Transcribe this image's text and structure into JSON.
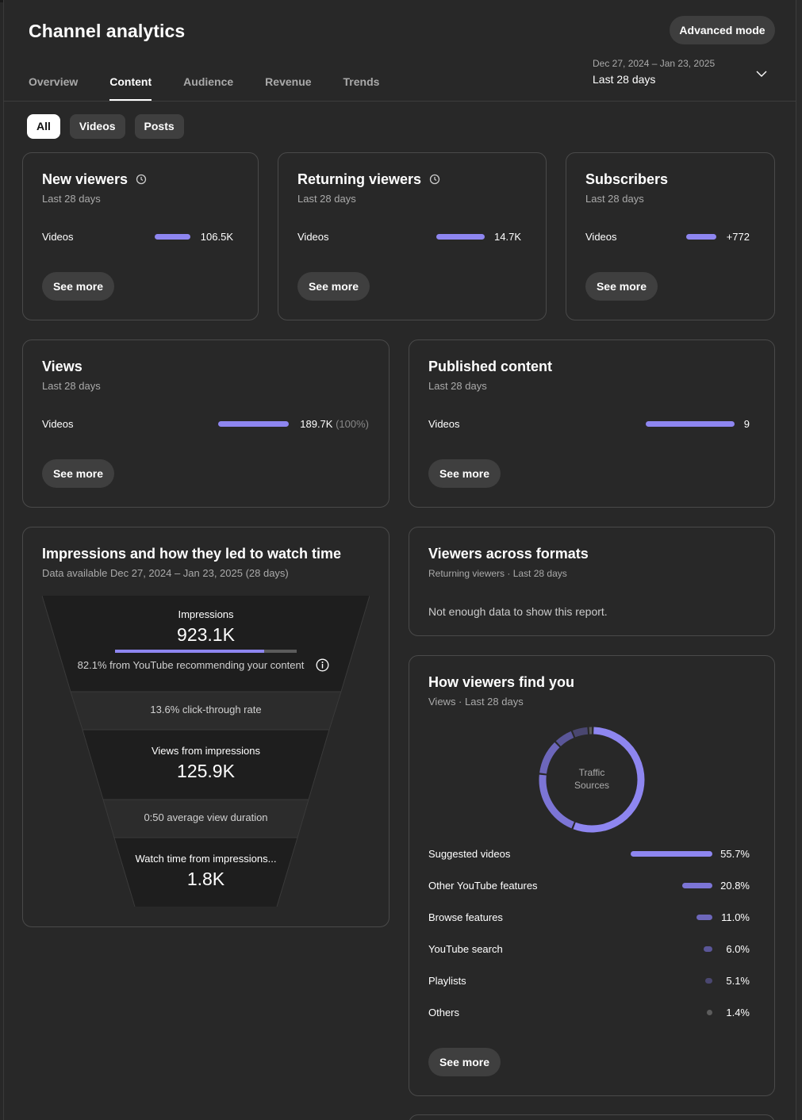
{
  "header": {
    "title": "Channel analytics",
    "advanced_mode_label": "Advanced mode",
    "date_range": "Dec 27, 2024 – Jan 23, 2025",
    "date_label": "Last 28 days"
  },
  "tabs": [
    "Overview",
    "Content",
    "Audience",
    "Revenue",
    "Trends"
  ],
  "active_tab": "Content",
  "chips": [
    "All",
    "Videos",
    "Posts"
  ],
  "active_chip": "All",
  "cards": {
    "new_viewers": {
      "title": "New viewers",
      "sub": "Last 28 days",
      "row_label": "Videos",
      "value": "106.5K",
      "button": "See more"
    },
    "returning_viewers": {
      "title": "Returning viewers",
      "sub": "Last 28 days",
      "row_label": "Videos",
      "value": "14.7K",
      "button": "See more"
    },
    "subscribers": {
      "title": "Subscribers",
      "sub": "Last 28 days",
      "row_label": "Videos",
      "value": "+772",
      "button": "See more"
    },
    "views": {
      "title": "Views",
      "sub": "Last 28 days",
      "row_label": "Videos",
      "value": "189.7K",
      "pct": "(100%)",
      "button": "See more"
    },
    "published": {
      "title": "Published content",
      "sub": "Last 28 days",
      "row_label": "Videos",
      "value": "9",
      "button": "See more"
    },
    "impressions": {
      "title": "Impressions and how they led to watch time",
      "sub": "Data available Dec 27, 2024 – Jan 23, 2025 (28 days)",
      "impressions_label": "Impressions",
      "impressions_value": "923.1K",
      "recommend_text": "82.1% from YouTube recommending your content",
      "recommend_fraction": 0.821,
      "ctr_text": "13.6% click-through rate",
      "views_label": "Views from impressions",
      "views_value": "125.9K",
      "avd_text": "0:50 average view duration",
      "watch_label": "Watch time from impressions...",
      "watch_value": "1.8K"
    },
    "formats": {
      "title": "Viewers across formats",
      "sub": "Returning viewers · Last 28 days",
      "message": "Not enough data to show this report."
    },
    "find_you": {
      "title": "How viewers find you",
      "sub": "Views · Last 28 days",
      "donut_label_1": "Traffic",
      "donut_label_2": "Sources",
      "button": "See more",
      "sources": [
        {
          "label": "Suggested videos",
          "value": "55.7%",
          "fraction": 0.557,
          "color": "#8e86f0"
        },
        {
          "label": "Other YouTube features",
          "value": "20.8%",
          "fraction": 0.208,
          "color": "#7c75d6"
        },
        {
          "label": "Browse features",
          "value": "11.0%",
          "fraction": 0.11,
          "color": "#6d67bb"
        },
        {
          "label": "YouTube search",
          "value": "6.0%",
          "fraction": 0.06,
          "color": "#5a5698"
        },
        {
          "label": "Playlists",
          "value": "5.1%",
          "fraction": 0.051,
          "color": "#4a4770"
        },
        {
          "label": "Others",
          "value": "1.4%",
          "fraction": 0.014,
          "color": "#5c5c5c"
        }
      ]
    }
  }
}
